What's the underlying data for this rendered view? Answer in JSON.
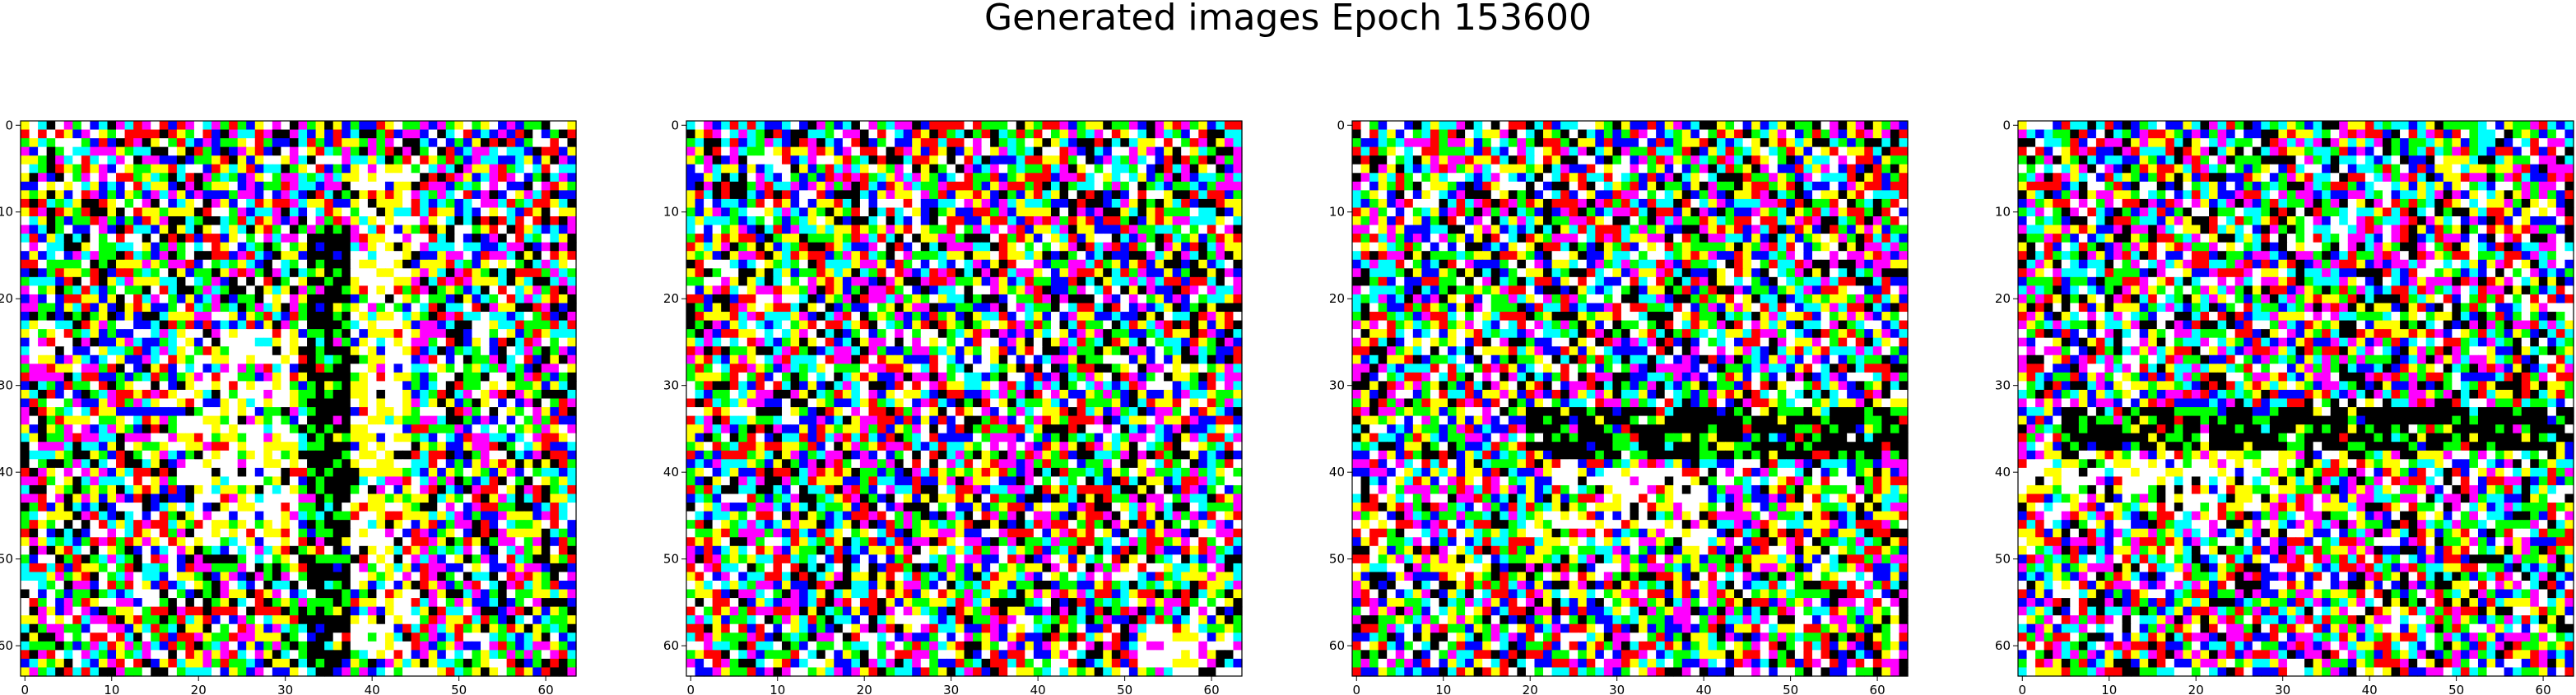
{
  "figure": {
    "title": "Generated images Epoch 153600"
  },
  "chart_data": [
    {
      "type": "heatmap",
      "panel": 1,
      "grid_size": [
        64,
        64
      ],
      "xlim": [
        -0.5,
        63.5
      ],
      "ylim": [
        63.5,
        -0.5
      ],
      "xticks": [
        0,
        10,
        20,
        30,
        40,
        50,
        60
      ],
      "yticks": [
        0,
        10,
        20,
        30,
        40,
        50,
        60
      ],
      "palette": [
        "#ff0000",
        "#00ff00",
        "#0000ff",
        "#ffff00",
        "#ff00ff",
        "#00ffff",
        "#ffffff",
        "#000000"
      ],
      "seed": 11,
      "features": [
        {
          "kind": "dark-column",
          "cols": [
            33,
            37
          ],
          "rows": [
            12,
            63
          ]
        },
        {
          "kind": "bright-column",
          "cols": [
            38,
            44
          ],
          "rows": [
            5,
            60
          ]
        },
        {
          "kind": "bright-blob",
          "cols": [
            18,
            31
          ],
          "rows": [
            24,
            48
          ]
        }
      ]
    },
    {
      "type": "heatmap",
      "panel": 2,
      "grid_size": [
        64,
        64
      ],
      "xlim": [
        -0.5,
        63.5
      ],
      "ylim": [
        63.5,
        -0.5
      ],
      "xticks": [
        0,
        10,
        20,
        30,
        40,
        50,
        60
      ],
      "yticks": [
        0,
        10,
        20,
        30,
        40,
        50,
        60
      ],
      "palette": [
        "#ff0000",
        "#00ff00",
        "#0000ff",
        "#ffff00",
        "#ff00ff",
        "#00ffff",
        "#ffffff",
        "#000000"
      ],
      "seed": 23,
      "features": [
        {
          "kind": "bright-blob",
          "cols": [
            52,
            62
          ],
          "rows": [
            58,
            63
          ]
        }
      ]
    },
    {
      "type": "heatmap",
      "panel": 3,
      "grid_size": [
        64,
        64
      ],
      "xlim": [
        -0.5,
        63.5
      ],
      "ylim": [
        63.5,
        -0.5
      ],
      "xticks": [
        0,
        10,
        20,
        30,
        40,
        50,
        60
      ],
      "yticks": [
        0,
        10,
        20,
        30,
        40,
        50,
        60
      ],
      "palette": [
        "#ff0000",
        "#00ff00",
        "#0000ff",
        "#ffff00",
        "#ff00ff",
        "#00ffff",
        "#ffffff",
        "#000000"
      ],
      "seed": 37,
      "features": [
        {
          "kind": "dark-band",
          "cols": [
            20,
            63
          ],
          "rows": [
            33,
            38
          ]
        },
        {
          "kind": "bright-blob",
          "cols": [
            20,
            40
          ],
          "rows": [
            40,
            48
          ]
        }
      ]
    },
    {
      "type": "heatmap",
      "panel": 4,
      "grid_size": [
        64,
        64
      ],
      "xlim": [
        -0.5,
        63.5
      ],
      "ylim": [
        63.5,
        -0.5
      ],
      "xticks": [
        0,
        10,
        20,
        30,
        40,
        50,
        60
      ],
      "yticks": [
        0,
        10,
        20,
        30,
        40,
        50,
        60
      ],
      "palette": [
        "#ff0000",
        "#00ff00",
        "#0000ff",
        "#ffff00",
        "#ff00ff",
        "#00ffff",
        "#ffffff",
        "#000000"
      ],
      "seed": 51,
      "features": [
        {
          "kind": "dark-band",
          "cols": [
            5,
            63
          ],
          "rows": [
            33,
            37
          ]
        },
        {
          "kind": "bright-blob",
          "cols": [
            0,
            30
          ],
          "rows": [
            38,
            44
          ]
        }
      ]
    }
  ]
}
